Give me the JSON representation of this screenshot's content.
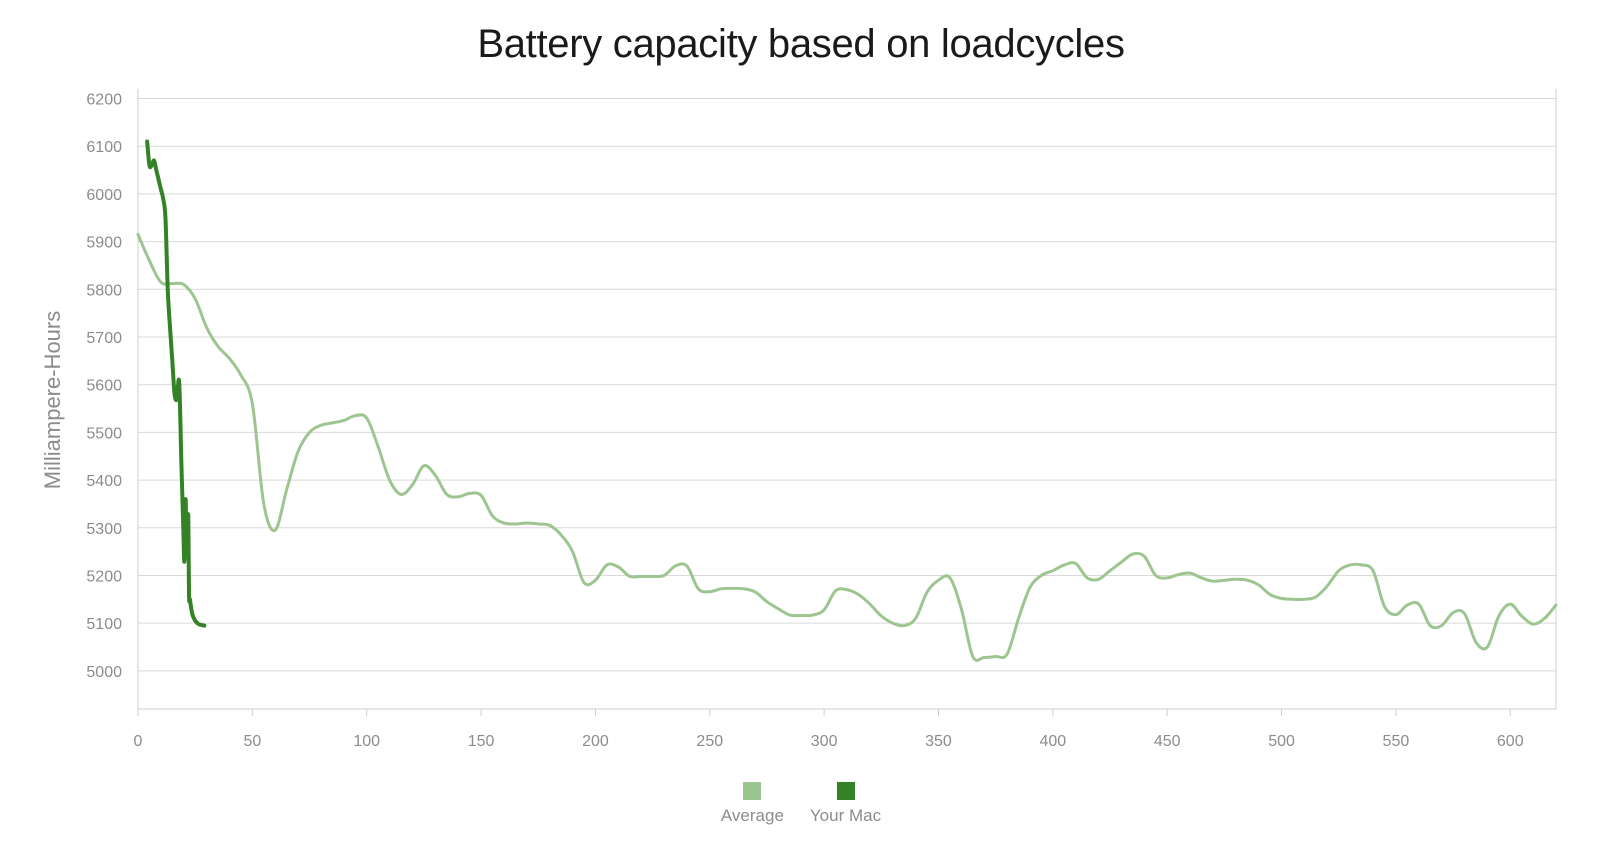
{
  "chart_data": {
    "type": "line",
    "title": "Battery capacity based on loadcycles",
    "xlabel": "",
    "ylabel": "Milliampere-Hours",
    "xlim": [
      0,
      620
    ],
    "ylim": [
      4920,
      6220
    ],
    "x_ticks": [
      0,
      50,
      100,
      150,
      200,
      250,
      300,
      350,
      400,
      450,
      500,
      550,
      600
    ],
    "y_ticks": [
      5000,
      5100,
      5200,
      5300,
      5400,
      5500,
      5600,
      5700,
      5800,
      5900,
      6000,
      6100,
      6200
    ],
    "grid": true,
    "legend_position": "bottom-center",
    "series": [
      {
        "name": "Average",
        "color": "#9dc58f",
        "x": [
          0,
          5,
          10,
          15,
          20,
          25,
          30,
          35,
          40,
          45,
          50,
          55,
          60,
          65,
          70,
          75,
          80,
          85,
          90,
          95,
          100,
          105,
          110,
          115,
          120,
          125,
          130,
          135,
          140,
          145,
          150,
          155,
          160,
          165,
          170,
          175,
          180,
          185,
          190,
          195,
          200,
          205,
          210,
          215,
          220,
          225,
          230,
          235,
          240,
          245,
          250,
          255,
          260,
          265,
          270,
          275,
          280,
          285,
          290,
          295,
          300,
          305,
          310,
          315,
          320,
          325,
          330,
          335,
          340,
          345,
          350,
          355,
          360,
          365,
          370,
          375,
          380,
          385,
          390,
          395,
          400,
          405,
          410,
          415,
          420,
          425,
          430,
          435,
          440,
          445,
          450,
          455,
          460,
          465,
          470,
          475,
          480,
          485,
          490,
          495,
          500,
          505,
          510,
          515,
          520,
          525,
          530,
          535,
          540,
          545,
          550,
          555,
          560,
          565,
          570,
          575,
          580,
          585,
          590,
          595,
          600,
          605,
          610,
          615,
          620
        ],
        "values": [
          5915,
          5860,
          5815,
          5812,
          5810,
          5780,
          5720,
          5680,
          5655,
          5620,
          5560,
          5350,
          5295,
          5380,
          5460,
          5500,
          5515,
          5520,
          5525,
          5535,
          5530,
          5470,
          5400,
          5370,
          5390,
          5430,
          5410,
          5370,
          5365,
          5372,
          5368,
          5325,
          5310,
          5308,
          5310,
          5308,
          5305,
          5285,
          5250,
          5185,
          5190,
          5222,
          5218,
          5198,
          5198,
          5198,
          5200,
          5220,
          5220,
          5172,
          5166,
          5172,
          5173,
          5172,
          5165,
          5145,
          5130,
          5117,
          5116,
          5117,
          5128,
          5168,
          5170,
          5160,
          5140,
          5115,
          5100,
          5095,
          5110,
          5165,
          5190,
          5195,
          5130,
          5030,
          5028,
          5030,
          5035,
          5110,
          5175,
          5200,
          5210,
          5222,
          5225,
          5195,
          5192,
          5210,
          5228,
          5245,
          5240,
          5200,
          5195,
          5202,
          5205,
          5195,
          5188,
          5190,
          5192,
          5190,
          5180,
          5160,
          5152,
          5150,
          5150,
          5155,
          5178,
          5210,
          5222,
          5222,
          5210,
          5135,
          5118,
          5138,
          5140,
          5095,
          5095,
          5122,
          5120,
          5060,
          5050,
          5115,
          5140,
          5115,
          5098,
          5110,
          5138
        ]
      },
      {
        "name": "Your Mac",
        "color": "#338225",
        "x": [
          4,
          5,
          6,
          7,
          8,
          9,
          10,
          11,
          12,
          13,
          14,
          15,
          16,
          17,
          18,
          19,
          19.8,
          20.3,
          20.8,
          21.3,
          21.6,
          22,
          22.3,
          22.7,
          23,
          23.3,
          23.7,
          24,
          24.5,
          25,
          26,
          27,
          29
        ],
        "values": [
          6110,
          6060,
          6060,
          6070,
          6050,
          6030,
          6010,
          5990,
          5950,
          5800,
          5720,
          5650,
          5580,
          5570,
          5605,
          5430,
          5300,
          5230,
          5360,
          5240,
          5300,
          5320,
          5160,
          5150,
          5140,
          5130,
          5120,
          5115,
          5110,
          5105,
          5100,
          5097,
          5095
        ]
      }
    ]
  }
}
